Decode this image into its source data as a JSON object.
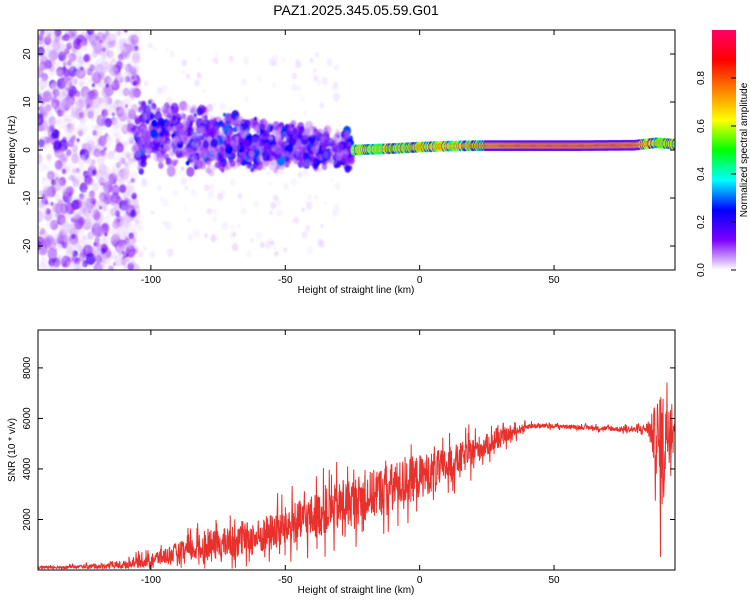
{
  "page_title": "PAZ1.2025.345.05.59.G01",
  "chart_data": [
    {
      "type": "heatmap",
      "title": "PAZ1.2025.345.05.59.G01",
      "xlabel": "Height of straight line (km)",
      "ylabel": "Frequency (Hz)",
      "xlim": [
        -142,
        95
      ],
      "ylim": [
        -25,
        25
      ],
      "xticks": [
        -100,
        -50,
        0,
        50
      ],
      "xtick_labels": [
        "-100",
        "-50",
        "0",
        "50"
      ],
      "yticks": [
        -20,
        -10,
        0,
        10,
        20
      ],
      "ytick_labels": [
        "-20",
        "-10",
        "0",
        "10",
        "20"
      ],
      "colorbar": {
        "label": "Normalized spectral amplitude",
        "range": [
          0,
          1
        ],
        "ticks": [
          0.0,
          0.2,
          0.4,
          0.6,
          0.8
        ],
        "tick_labels": [
          "0.0",
          "0.2",
          "0.4",
          "0.6",
          "0.8"
        ],
        "colormap": [
          "#ffffff",
          "#7b00ff",
          "#0000ff",
          "#00ffff",
          "#00ff00",
          "#ffff00",
          "#ff8000",
          "#ff0000",
          "#ff0066"
        ]
      },
      "tone_line": {
        "x": [
          -25,
          -10,
          0,
          10,
          20,
          40,
          60,
          80,
          88,
          95
        ],
        "frequency": [
          0,
          0.3,
          0.6,
          0.8,
          0.9,
          0.9,
          0.9,
          1.0,
          1.5,
          1.2
        ],
        "amplitude": [
          0.35,
          0.5,
          0.55,
          0.6,
          0.75,
          0.95,
          0.95,
          0.9,
          0.5,
          0.4
        ]
      },
      "scatter_regions": [
        {
          "x_range": [
            -142,
            -105
          ],
          "freq_halfwidth": 25,
          "amp_max": 0.2
        },
        {
          "x_range": [
            -105,
            -25
          ],
          "freq_center": 3,
          "freq_halfwidth": 6,
          "amp_max": 0.3
        }
      ]
    },
    {
      "type": "line",
      "xlabel": "Height of straight line (km)",
      "ylabel": "SNR (10 * v/v)",
      "xlim": [
        -142,
        95
      ],
      "ylim": [
        0,
        9500
      ],
      "xticks": [
        -100,
        -50,
        0,
        50
      ],
      "xtick_labels": [
        "-100",
        "-50",
        "0",
        "50"
      ],
      "yticks": [
        2000,
        4000,
        6000,
        8000
      ],
      "ytick_labels": [
        "2000",
        "4000",
        "6000",
        "8000"
      ],
      "color": "#e8302c",
      "envelope": {
        "x": [
          -142,
          -130,
          -120,
          -110,
          -100,
          -90,
          -80,
          -70,
          -60,
          -50,
          -40,
          -30,
          -20,
          -10,
          0,
          10,
          20,
          30,
          40,
          50,
          60,
          70,
          80,
          85,
          88,
          90,
          92,
          95
        ],
        "mean": [
          100,
          120,
          150,
          200,
          400,
          700,
          900,
          1100,
          1300,
          1700,
          2100,
          2500,
          2900,
          3300,
          3700,
          4100,
          4700,
          5200,
          5700,
          5700,
          5650,
          5600,
          5550,
          5600,
          5200,
          4500,
          5800,
          5700
        ],
        "spread": [
          60,
          80,
          120,
          200,
          350,
          500,
          700,
          800,
          900,
          1000,
          1100,
          1200,
          1200,
          1200,
          1100,
          900,
          700,
          400,
          150,
          100,
          100,
          120,
          150,
          300,
          1800,
          3000,
          2500,
          400
        ]
      }
    }
  ]
}
